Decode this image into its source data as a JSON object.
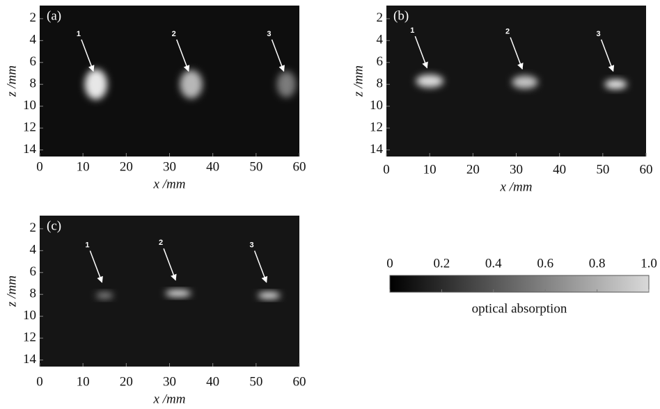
{
  "chart_data": [
    {
      "type": "image",
      "panel_label": "(a)",
      "xlabel": "x /mm",
      "ylabel": "z /mm",
      "background": "#0e0e0e",
      "xlim": [
        0,
        60
      ],
      "xticks": [
        0,
        10,
        20,
        30,
        40,
        50,
        60
      ],
      "ylim": [
        0.8,
        14.6
      ],
      "yticks": [
        2,
        4,
        6,
        8,
        10,
        12,
        14
      ],
      "spots": [
        {
          "label": "1",
          "x": 13,
          "z": 8,
          "sx": 2.6,
          "sz": 1.4,
          "intensity": 0.9
        },
        {
          "label": "2",
          "x": 35,
          "z": 8,
          "sx": 2.6,
          "sz": 1.3,
          "intensity": 0.7
        },
        {
          "label": "3",
          "x": 57,
          "z": 8,
          "sx": 2.2,
          "sz": 1.2,
          "intensity": 0.45
        }
      ]
    },
    {
      "type": "image",
      "panel_label": "(b)",
      "xlabel": "x /mm",
      "ylabel": "z /mm",
      "background": "#141414",
      "xlim": [
        0,
        60
      ],
      "xticks": [
        0,
        10,
        20,
        30,
        40,
        50,
        60
      ],
      "ylim": [
        0.8,
        14.6
      ],
      "yticks": [
        2,
        4,
        6,
        8,
        10,
        12,
        14
      ],
      "spots": [
        {
          "label": "1",
          "x": 10,
          "z": 7.7,
          "sx": 3.2,
          "sz": 0.6,
          "intensity": 0.85
        },
        {
          "label": "2",
          "x": 32,
          "z": 7.8,
          "sx": 3,
          "sz": 0.6,
          "intensity": 0.75
        },
        {
          "label": "3",
          "x": 53,
          "z": 8,
          "sx": 2.6,
          "sz": 0.45,
          "intensity": 0.9
        }
      ]
    },
    {
      "type": "image",
      "panel_label": "(c)",
      "xlabel": "x /mm",
      "ylabel": "z /mm",
      "background": "#151515",
      "xlim": [
        0,
        60
      ],
      "xticks": [
        0,
        10,
        20,
        30,
        40,
        50,
        60
      ],
      "ylim": [
        0.8,
        14.6
      ],
      "yticks": [
        2,
        4,
        6,
        8,
        10,
        12,
        14
      ],
      "spots": [
        {
          "label": "1",
          "x": 15,
          "z": 8.1,
          "sx": 2,
          "sz": 0.3,
          "intensity": 0.5
        },
        {
          "label": "2",
          "x": 32,
          "z": 7.9,
          "sx": 3,
          "sz": 0.3,
          "intensity": 0.95
        },
        {
          "label": "3",
          "x": 53,
          "z": 8.1,
          "sx": 2.6,
          "sz": 0.3,
          "intensity": 0.95
        }
      ]
    },
    {
      "type": "colorbar",
      "label": "optical absorption",
      "colors": [
        "#000000",
        "#d9d9d9"
      ],
      "xlim": [
        0,
        1
      ],
      "xticks": [
        0,
        0.2,
        0.4,
        0.6,
        0.8,
        {
          "value": 1,
          "label": "1.0"
        }
      ]
    }
  ]
}
